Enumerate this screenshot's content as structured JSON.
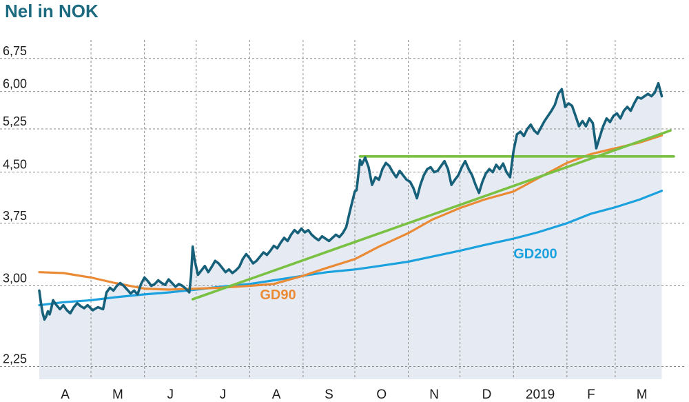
{
  "title": "Nel in NOK",
  "colors": {
    "title": "#1c6a80",
    "price": "#17607a",
    "area": "#e6ebf3",
    "gd90": "#ea8a35",
    "gd200": "#1ba1dd",
    "trend": "#7ac143",
    "grid": "#8a8a8a"
  },
  "chart_data": {
    "type": "line",
    "title": "Nel in NOK",
    "xlabel": "",
    "ylabel": "",
    "y_scale": "log",
    "ylim": [
      2.15,
      7.0
    ],
    "y_ticks": [
      2.25,
      3.0,
      3.75,
      4.5,
      5.25,
      6.0,
      6.75
    ],
    "y_tick_labels": [
      "2,25",
      "3,00",
      "3,75",
      "4,50",
      "5,25",
      "6,00",
      "6,75"
    ],
    "x_range": [
      "2018-04-01",
      "2019-03-31"
    ],
    "x_ticks": [
      "2018-04-01",
      "2018-05-01",
      "2018-06-01",
      "2018-07-01",
      "2018-08-01",
      "2018-09-01",
      "2018-10-01",
      "2018-11-01",
      "2018-12-01",
      "2019-01-01",
      "2019-02-01",
      "2019-03-01"
    ],
    "x_tick_labels": [
      "A",
      "M",
      "J",
      "J",
      "A",
      "S",
      "O",
      "N",
      "D",
      "2019",
      "F",
      "M"
    ],
    "grid": true,
    "series": [
      {
        "name": "",
        "key": "price",
        "style": "thick line with shaded area",
        "points": [
          [
            "2018-04-01",
            2.95
          ],
          [
            "2018-04-02",
            2.82
          ],
          [
            "2018-04-03",
            2.72
          ],
          [
            "2018-04-04",
            2.66
          ],
          [
            "2018-04-05",
            2.69
          ],
          [
            "2018-04-06",
            2.74
          ],
          [
            "2018-04-07",
            2.71
          ],
          [
            "2018-04-08",
            2.77
          ],
          [
            "2018-04-09",
            2.85
          ],
          [
            "2018-04-11",
            2.8
          ],
          [
            "2018-04-13",
            2.76
          ],
          [
            "2018-04-15",
            2.8
          ],
          [
            "2018-04-17",
            2.75
          ],
          [
            "2018-04-19",
            2.72
          ],
          [
            "2018-04-21",
            2.78
          ],
          [
            "2018-04-23",
            2.82
          ],
          [
            "2018-04-25",
            2.79
          ],
          [
            "2018-04-27",
            2.77
          ],
          [
            "2018-04-29",
            2.8
          ],
          [
            "2018-05-02",
            2.75
          ],
          [
            "2018-05-05",
            2.78
          ],
          [
            "2018-05-08",
            2.76
          ],
          [
            "2018-05-10",
            2.93
          ],
          [
            "2018-05-12",
            2.98
          ],
          [
            "2018-05-14",
            2.95
          ],
          [
            "2018-05-16",
            3.0
          ],
          [
            "2018-05-18",
            3.03
          ],
          [
            "2018-05-20",
            3.0
          ],
          [
            "2018-05-22",
            2.96
          ],
          [
            "2018-05-24",
            2.92
          ],
          [
            "2018-05-26",
            2.95
          ],
          [
            "2018-05-28",
            2.91
          ],
          [
            "2018-05-30",
            3.02
          ],
          [
            "2018-06-01",
            3.09
          ],
          [
            "2018-06-03",
            3.05
          ],
          [
            "2018-06-05",
            3.0
          ],
          [
            "2018-06-07",
            3.02
          ],
          [
            "2018-06-09",
            3.06
          ],
          [
            "2018-06-11",
            3.03
          ],
          [
            "2018-06-13",
            3.01
          ],
          [
            "2018-06-15",
            3.07
          ],
          [
            "2018-06-17",
            3.03
          ],
          [
            "2018-06-19",
            2.99
          ],
          [
            "2018-06-21",
            3.02
          ],
          [
            "2018-06-23",
            3.0
          ],
          [
            "2018-06-25",
            2.97
          ],
          [
            "2018-06-27",
            2.93
          ],
          [
            "2018-06-28",
            3.1
          ],
          [
            "2018-06-29",
            3.45
          ],
          [
            "2018-06-30",
            3.3
          ],
          [
            "2018-07-02",
            3.12
          ],
          [
            "2018-07-04",
            3.17
          ],
          [
            "2018-07-06",
            3.22
          ],
          [
            "2018-07-08",
            3.15
          ],
          [
            "2018-07-10",
            3.21
          ],
          [
            "2018-07-12",
            3.28
          ],
          [
            "2018-07-14",
            3.25
          ],
          [
            "2018-07-16",
            3.2
          ],
          [
            "2018-07-18",
            3.15
          ],
          [
            "2018-07-20",
            3.18
          ],
          [
            "2018-07-22",
            3.14
          ],
          [
            "2018-07-24",
            3.17
          ],
          [
            "2018-07-26",
            3.21
          ],
          [
            "2018-07-28",
            3.3
          ],
          [
            "2018-07-30",
            3.36
          ],
          [
            "2018-08-01",
            3.31
          ],
          [
            "2018-08-03",
            3.25
          ],
          [
            "2018-08-05",
            3.28
          ],
          [
            "2018-08-07",
            3.33
          ],
          [
            "2018-08-09",
            3.38
          ],
          [
            "2018-08-11",
            3.35
          ],
          [
            "2018-08-13",
            3.4
          ],
          [
            "2018-08-15",
            3.46
          ],
          [
            "2018-08-17",
            3.43
          ],
          [
            "2018-08-19",
            3.5
          ],
          [
            "2018-08-21",
            3.56
          ],
          [
            "2018-08-23",
            3.52
          ],
          [
            "2018-08-25",
            3.6
          ],
          [
            "2018-08-27",
            3.66
          ],
          [
            "2018-08-29",
            3.62
          ],
          [
            "2018-08-31",
            3.68
          ],
          [
            "2018-09-02",
            3.63
          ],
          [
            "2018-09-04",
            3.66
          ],
          [
            "2018-09-06",
            3.6
          ],
          [
            "2018-09-08",
            3.56
          ],
          [
            "2018-09-10",
            3.53
          ],
          [
            "2018-09-12",
            3.58
          ],
          [
            "2018-09-14",
            3.55
          ],
          [
            "2018-09-16",
            3.52
          ],
          [
            "2018-09-18",
            3.56
          ],
          [
            "2018-09-20",
            3.6
          ],
          [
            "2018-09-22",
            3.57
          ],
          [
            "2018-09-24",
            3.62
          ],
          [
            "2018-09-26",
            3.7
          ],
          [
            "2018-09-28",
            3.9
          ],
          [
            "2018-09-30",
            4.1
          ],
          [
            "2018-10-01",
            4.2
          ],
          [
            "2018-10-02",
            4.22
          ],
          [
            "2018-10-03",
            4.45
          ],
          [
            "2018-10-04",
            4.7
          ],
          [
            "2018-10-05",
            4.62
          ],
          [
            "2018-10-07",
            4.74
          ],
          [
            "2018-10-09",
            4.58
          ],
          [
            "2018-10-11",
            4.3
          ],
          [
            "2018-10-13",
            4.42
          ],
          [
            "2018-10-15",
            4.38
          ],
          [
            "2018-10-17",
            4.55
          ],
          [
            "2018-10-19",
            4.65
          ],
          [
            "2018-10-21",
            4.6
          ],
          [
            "2018-10-23",
            4.5
          ],
          [
            "2018-10-25",
            4.42
          ],
          [
            "2018-10-27",
            4.52
          ],
          [
            "2018-10-29",
            4.45
          ],
          [
            "2018-10-31",
            4.38
          ],
          [
            "2018-11-02",
            4.35
          ],
          [
            "2018-11-04",
            4.25
          ],
          [
            "2018-11-06",
            4.1
          ],
          [
            "2018-11-08",
            4.3
          ],
          [
            "2018-11-10",
            4.45
          ],
          [
            "2018-11-12",
            4.55
          ],
          [
            "2018-11-14",
            4.58
          ],
          [
            "2018-11-16",
            4.5
          ],
          [
            "2018-11-18",
            4.52
          ],
          [
            "2018-11-20",
            4.6
          ],
          [
            "2018-11-22",
            4.68
          ],
          [
            "2018-11-24",
            4.55
          ],
          [
            "2018-11-26",
            4.3
          ],
          [
            "2018-11-28",
            4.38
          ],
          [
            "2018-11-30",
            4.45
          ],
          [
            "2018-12-02",
            4.58
          ],
          [
            "2018-12-04",
            4.68
          ],
          [
            "2018-12-06",
            4.55
          ],
          [
            "2018-12-08",
            4.45
          ],
          [
            "2018-12-10",
            4.3
          ],
          [
            "2018-12-12",
            4.18
          ],
          [
            "2018-12-14",
            4.35
          ],
          [
            "2018-12-16",
            4.48
          ],
          [
            "2018-12-18",
            4.55
          ],
          [
            "2018-12-20",
            4.5
          ],
          [
            "2018-12-22",
            4.62
          ],
          [
            "2018-12-24",
            4.55
          ],
          [
            "2018-12-26",
            4.64
          ],
          [
            "2018-12-28",
            4.5
          ],
          [
            "2018-12-30",
            4.42
          ],
          [
            "2019-01-01",
            4.85
          ],
          [
            "2019-01-03",
            5.15
          ],
          [
            "2019-01-05",
            5.2
          ],
          [
            "2019-01-07",
            5.12
          ],
          [
            "2019-01-09",
            5.25
          ],
          [
            "2019-01-11",
            5.33
          ],
          [
            "2019-01-13",
            5.22
          ],
          [
            "2019-01-15",
            5.16
          ],
          [
            "2019-01-17",
            5.28
          ],
          [
            "2019-01-19",
            5.4
          ],
          [
            "2019-01-21",
            5.5
          ],
          [
            "2019-01-23",
            5.6
          ],
          [
            "2019-01-25",
            5.72
          ],
          [
            "2019-01-27",
            5.95
          ],
          [
            "2019-01-29",
            6.05
          ],
          [
            "2019-01-31",
            5.68
          ],
          [
            "2019-02-02",
            5.75
          ],
          [
            "2019-02-04",
            5.7
          ],
          [
            "2019-02-06",
            5.5
          ],
          [
            "2019-02-08",
            5.3
          ],
          [
            "2019-02-10",
            5.4
          ],
          [
            "2019-02-12",
            5.3
          ],
          [
            "2019-02-14",
            5.45
          ],
          [
            "2019-02-16",
            5.36
          ],
          [
            "2019-02-18",
            4.9
          ],
          [
            "2019-02-20",
            5.1
          ],
          [
            "2019-02-22",
            5.3
          ],
          [
            "2019-02-24",
            5.45
          ],
          [
            "2019-02-26",
            5.38
          ],
          [
            "2019-02-28",
            5.5
          ],
          [
            "2019-03-02",
            5.55
          ],
          [
            "2019-03-04",
            5.45
          ],
          [
            "2019-03-06",
            5.6
          ],
          [
            "2019-03-08",
            5.68
          ],
          [
            "2019-03-10",
            5.6
          ],
          [
            "2019-03-12",
            5.75
          ],
          [
            "2019-03-14",
            5.88
          ],
          [
            "2019-03-16",
            5.85
          ],
          [
            "2019-03-18",
            5.9
          ],
          [
            "2019-03-20",
            5.95
          ],
          [
            "2019-03-22",
            5.9
          ],
          [
            "2019-03-24",
            5.98
          ],
          [
            "2019-03-26",
            6.18
          ],
          [
            "2019-03-28",
            5.9
          ]
        ]
      },
      {
        "name": "GD90",
        "key": "gd90",
        "points": [
          [
            "2018-04-01",
            3.15
          ],
          [
            "2018-04-15",
            3.14
          ],
          [
            "2018-05-01",
            3.09
          ],
          [
            "2018-05-15",
            3.03
          ],
          [
            "2018-06-01",
            2.97
          ],
          [
            "2018-06-15",
            2.96
          ],
          [
            "2018-07-01",
            2.97
          ],
          [
            "2018-07-15",
            2.98
          ],
          [
            "2018-08-01",
            3.0
          ],
          [
            "2018-08-15",
            3.02
          ],
          [
            "2018-09-01",
            3.11
          ],
          [
            "2018-09-15",
            3.2
          ],
          [
            "2018-10-01",
            3.3
          ],
          [
            "2018-10-15",
            3.45
          ],
          [
            "2018-11-01",
            3.62
          ],
          [
            "2018-11-15",
            3.8
          ],
          [
            "2018-12-01",
            3.96
          ],
          [
            "2018-12-15",
            4.08
          ],
          [
            "2019-01-01",
            4.2
          ],
          [
            "2019-01-15",
            4.4
          ],
          [
            "2019-02-01",
            4.65
          ],
          [
            "2019-02-15",
            4.8
          ],
          [
            "2019-03-01",
            4.9
          ],
          [
            "2019-03-15",
            5.0
          ],
          [
            "2019-03-28",
            5.13
          ]
        ]
      },
      {
        "name": "GD200",
        "key": "gd200",
        "points": [
          [
            "2018-04-01",
            2.8
          ],
          [
            "2018-04-15",
            2.83
          ],
          [
            "2018-05-01",
            2.85
          ],
          [
            "2018-05-15",
            2.88
          ],
          [
            "2018-06-01",
            2.91
          ],
          [
            "2018-06-15",
            2.93
          ],
          [
            "2018-07-01",
            2.96
          ],
          [
            "2018-07-15",
            2.99
          ],
          [
            "2018-08-01",
            3.02
          ],
          [
            "2018-08-15",
            3.06
          ],
          [
            "2018-09-01",
            3.11
          ],
          [
            "2018-09-15",
            3.15
          ],
          [
            "2018-10-01",
            3.18
          ],
          [
            "2018-10-15",
            3.22
          ],
          [
            "2018-11-01",
            3.27
          ],
          [
            "2018-11-15",
            3.33
          ],
          [
            "2018-12-01",
            3.4
          ],
          [
            "2018-12-15",
            3.47
          ],
          [
            "2019-01-01",
            3.55
          ],
          [
            "2019-01-15",
            3.63
          ],
          [
            "2019-02-01",
            3.75
          ],
          [
            "2019-02-15",
            3.88
          ],
          [
            "2019-03-01",
            3.97
          ],
          [
            "2019-03-15",
            4.08
          ],
          [
            "2019-03-28",
            4.21
          ]
        ]
      },
      {
        "name": "",
        "key": "trend_rising",
        "style": "trendline",
        "points": [
          [
            "2018-06-29",
            2.86
          ],
          [
            "2019-04-02",
            5.22
          ]
        ]
      },
      {
        "name": "",
        "key": "trend_horizontal",
        "style": "trendline",
        "points": [
          [
            "2018-10-04",
            4.76
          ],
          [
            "2019-04-04",
            4.76
          ]
        ]
      }
    ],
    "annotations": [
      {
        "text": "GD90",
        "date": "2018-08-07",
        "value": 2.86,
        "color_key": "gd90"
      },
      {
        "text": "GD200",
        "date": "2019-01-01",
        "value": 3.31,
        "color_key": "gd200"
      }
    ]
  }
}
